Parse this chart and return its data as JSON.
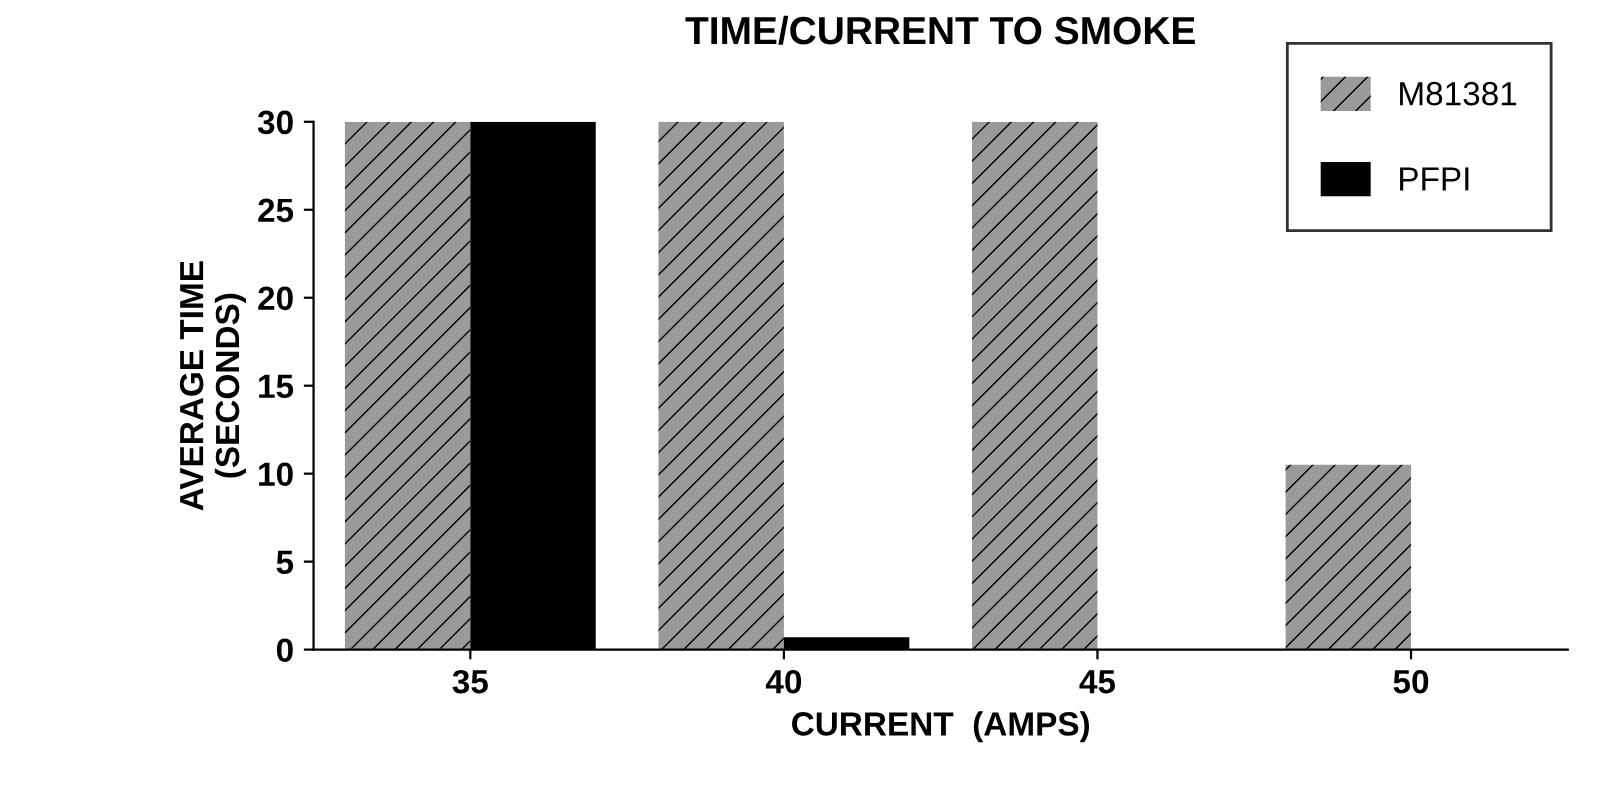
{
  "chart_data": {
    "type": "bar",
    "title": "TIME/CURRENT TO SMOKE",
    "xlabel": "CURRENT  (AMPS)",
    "ylabel": "AVERAGE TIME\n(SECONDS)",
    "categories": [
      "35",
      "40",
      "45",
      "50"
    ],
    "series": [
      {
        "name": "M81381",
        "color": "#9a9a9a",
        "values": [
          30,
          30,
          30,
          10.5
        ]
      },
      {
        "name": "PFPI",
        "color": "#000000",
        "values": [
          30,
          0.7,
          null,
          null
        ]
      }
    ],
    "ylim": [
      0,
      30
    ],
    "yticks": [
      0,
      5,
      10,
      15,
      20,
      25,
      30
    ],
    "grid": false,
    "legend": "top right"
  }
}
